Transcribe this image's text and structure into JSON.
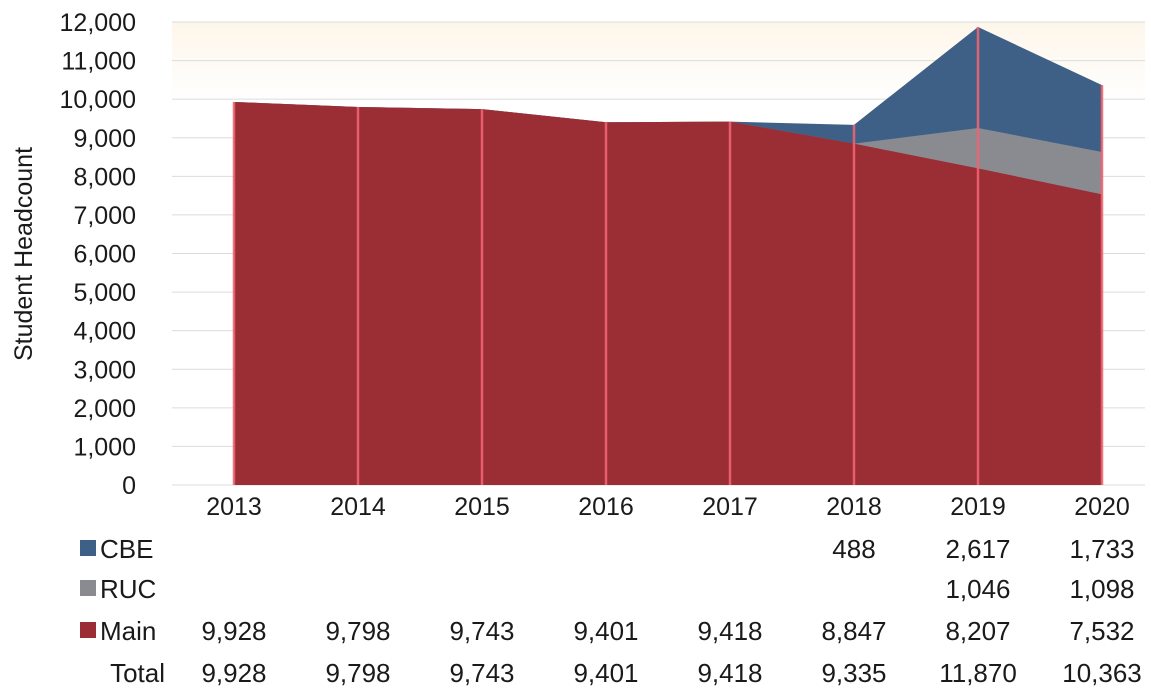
{
  "chart_data": {
    "type": "area",
    "stacked": true,
    "ylabel": "Student Headcount",
    "xlabel": "",
    "ylim": [
      0,
      12000
    ],
    "yticks": [
      "0",
      "1,000",
      "2,000",
      "3,000",
      "4,000",
      "5,000",
      "6,000",
      "7,000",
      "8,000",
      "9,000",
      "10,000",
      "11,000",
      "12,000"
    ],
    "categories": [
      "2013",
      "2014",
      "2015",
      "2016",
      "2017",
      "2018",
      "2019",
      "2020"
    ],
    "grid": true,
    "series": [
      {
        "name": "Main",
        "color": "#9b2d35",
        "values": [
          9928,
          9798,
          9743,
          9401,
          9418,
          8847,
          8207,
          7532
        ],
        "labels": [
          "9,928",
          "9,798",
          "9,743",
          "9,401",
          "9,418",
          "8,847",
          "8,207",
          "7,532"
        ]
      },
      {
        "name": "RUC",
        "color": "#8a8b91",
        "values": [
          0,
          0,
          0,
          0,
          0,
          0,
          1046,
          1098
        ],
        "labels": [
          "",
          "",
          "",
          "",
          "",
          "",
          "1,046",
          "1,098"
        ]
      },
      {
        "name": "CBE",
        "color": "#3e5f86",
        "values": [
          0,
          0,
          0,
          0,
          0,
          488,
          2617,
          1733
        ],
        "labels": [
          "",
          "",
          "",
          "",
          "",
          "488",
          "2,617",
          "1,733"
        ]
      }
    ],
    "table_rows": [
      "CBE",
      "RUC",
      "Main"
    ],
    "total": {
      "name": "Total",
      "values": [
        9928,
        9798,
        9743,
        9401,
        9418,
        9335,
        11870,
        10363
      ],
      "labels": [
        "9,928",
        "9,798",
        "9,743",
        "9,401",
        "9,418",
        "9,335",
        "11,870",
        "10,363"
      ]
    }
  }
}
